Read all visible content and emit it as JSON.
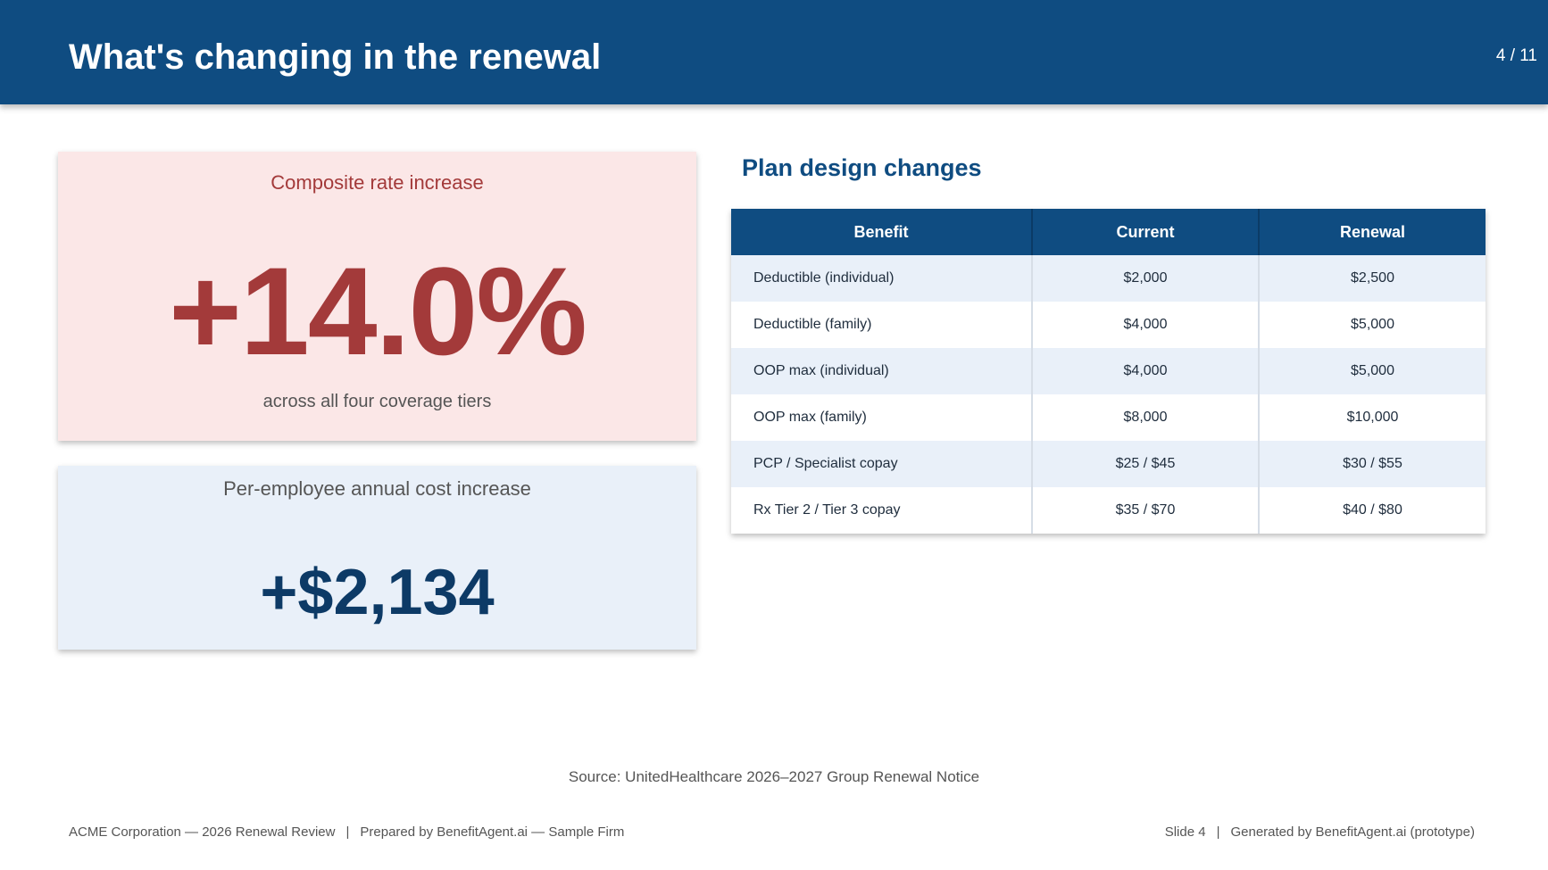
{
  "header": {
    "title": "What's changing in the renewal",
    "page_counter": "4 / 11"
  },
  "rate_card": {
    "label": "Composite rate increase",
    "value": "+14.0%",
    "subtitle": "across all four coverage tiers"
  },
  "cost_card": {
    "label": "Per-employee annual cost increase",
    "value": "+$2,134"
  },
  "plan_changes": {
    "title": "Plan design changes",
    "columns": [
      "Benefit",
      "Current",
      "Renewal"
    ],
    "rows": [
      {
        "benefit": "Deductible (individual)",
        "current": "$2,000",
        "renewal": "$2,500"
      },
      {
        "benefit": "Deductible (family)",
        "current": "$4,000",
        "renewal": "$5,000"
      },
      {
        "benefit": "OOP max (individual)",
        "current": "$4,000",
        "renewal": "$5,000"
      },
      {
        "benefit": "OOP max (family)",
        "current": "$8,000",
        "renewal": "$10,000"
      },
      {
        "benefit": "PCP / Specialist copay",
        "current": "$25 / $45",
        "renewal": "$30 / $55"
      },
      {
        "benefit": "Rx Tier 2 / Tier 3 copay",
        "current": "$35 / $70",
        "renewal": "$40 / $80"
      }
    ]
  },
  "source": "Source: UnitedHealthcare 2026–2027 Group Renewal Notice",
  "footer": {
    "left_client": "ACME Corporation — 2026 Renewal Review",
    "left_prepared": "Prepared by BenefitAgent.ai — Sample Firm",
    "separator": "|",
    "right_slide": "Slide 4",
    "right_generated": "Generated by BenefitAgent.ai (prototype)"
  },
  "colors": {
    "header_bg": "#0f4c81",
    "rate_card_bg": "#fbe7e7",
    "rate_accent": "#a33a3a",
    "cost_card_bg": "#e9f0f9",
    "cost_accent": "#0d3a66",
    "row_alt_bg": "#e9f0f9"
  }
}
